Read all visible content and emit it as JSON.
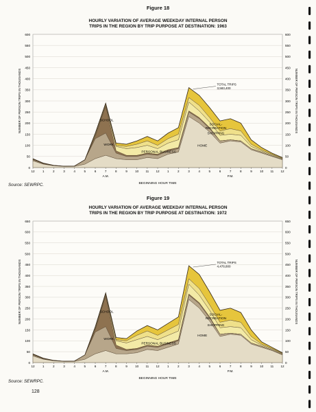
{
  "page_number": "128",
  "binding_color": "#111111",
  "colors": {
    "home": "#e4dcc6",
    "work": "#b7a68a",
    "school": "#8e7250",
    "personal_business": "#f3eaa6",
    "shopping": "#efe08a",
    "social_recreation": "#e6c53c",
    "outline": "#5a4a34"
  },
  "chart_data": [
    {
      "type": "area",
      "stacked": true,
      "figure_label": "Figure 18",
      "title": "HOURLY VARIATION OF AVERAGE WEEKDAY INTERNAL PERSON TRIPS IN THE REGION BY TRIP PURPOSE AT DESTINATION: 1963",
      "title_lines": [
        "HOURLY VARIATION OF AVERAGE WEEKDAY INTERNAL PERSON",
        "TRIPS IN THE REGION BY TRIP PURPOSE AT DESTINATION: 1963"
      ],
      "ylabel": "NUMBER OF PERSON TRIPS IN THOUSANDS",
      "xlabel": "BEGINNING HOUR TIME",
      "am_label": "A.M.",
      "pm_label": "P.M.",
      "x_tick_labels": [
        "12",
        "1",
        "2",
        "3",
        "4",
        "5",
        "6",
        "7",
        "8",
        "9",
        "10",
        "11",
        "12",
        "1",
        "2",
        "3",
        "4",
        "5",
        "6",
        "7",
        "8",
        "9",
        "10",
        "11",
        "12"
      ],
      "ylim": [
        0,
        600
      ],
      "yticks": [
        0,
        50,
        100,
        150,
        200,
        250,
        300,
        350,
        400,
        450,
        500,
        550,
        600
      ],
      "series": [
        {
          "name": "HOME",
          "values": [
            30,
            15,
            8,
            5,
            5,
            15,
            40,
            55,
            40,
            35,
            35,
            45,
            40,
            60,
            70,
            230,
            200,
            160,
            110,
            120,
            115,
            80,
            65,
            50,
            35
          ]
        },
        {
          "name": "WORK",
          "values": [
            5,
            2,
            1,
            1,
            2,
            20,
            90,
            100,
            25,
            15,
            15,
            15,
            15,
            15,
            15,
            20,
            20,
            15,
            10,
            5,
            5,
            5,
            5,
            3,
            2
          ]
        },
        {
          "name": "SCHOOL",
          "values": [
            0,
            0,
            0,
            0,
            0,
            0,
            10,
            120,
            10,
            5,
            5,
            5,
            5,
            5,
            5,
            5,
            5,
            5,
            0,
            0,
            0,
            0,
            0,
            0,
            0
          ]
        },
        {
          "name": "PERSONAL BUSINESS",
          "values": [
            2,
            1,
            0,
            0,
            0,
            0,
            5,
            5,
            20,
            30,
            35,
            35,
            25,
            30,
            35,
            40,
            30,
            25,
            25,
            25,
            25,
            10,
            5,
            4,
            3
          ]
        },
        {
          "name": "SHOPPING",
          "values": [
            1,
            1,
            0,
            0,
            0,
            0,
            5,
            5,
            5,
            10,
            15,
            20,
            15,
            20,
            25,
            20,
            25,
            20,
            20,
            25,
            20,
            10,
            5,
            3,
            2
          ]
        },
        {
          "name": "SOCIAL-RECREATION",
          "values": [
            2,
            1,
            1,
            0,
            0,
            0,
            5,
            5,
            10,
            10,
            15,
            20,
            20,
            25,
            30,
            45,
            45,
            45,
            45,
            45,
            35,
            20,
            10,
            5,
            3
          ]
        }
      ],
      "annotations": {
        "total_trips_label": "TOTAL TRIPS",
        "total_trips_value": "3,583,400"
      },
      "source": "Source: SEWRPC."
    },
    {
      "type": "area",
      "stacked": true,
      "figure_label": "Figure 19",
      "title": "HOURLY VARIATION OF AVERAGE WEEKDAY INTERNAL PERSON TRIPS IN THE REGION BY TRIP PURPOSE AT DESTINATION: 1972",
      "title_lines": [
        "HOURLY VARIATION OF AVERAGE WEEKDAY INTERNAL PERSON",
        "TRIPS IN THE REGION BY TRIP PURPOSE AT DESTINATION: 1972"
      ],
      "ylabel": "NUMBER OF PERSON TRIPS IN THOUSANDS",
      "xlabel": "BEGINNING HOUR TIME",
      "am_label": "A.M.",
      "pm_label": "P.M.",
      "x_tick_labels": [
        "12",
        "1",
        "2",
        "3",
        "4",
        "5",
        "6",
        "7",
        "8",
        "9",
        "10",
        "11",
        "12",
        "1",
        "2",
        "3",
        "4",
        "5",
        "6",
        "7",
        "8",
        "9",
        "10",
        "11",
        "12"
      ],
      "ylim": [
        0,
        650
      ],
      "yticks": [
        0,
        50,
        100,
        150,
        200,
        250,
        300,
        350,
        400,
        450,
        500,
        550,
        600,
        650
      ],
      "series": [
        {
          "name": "HOME",
          "values": [
            30,
            15,
            8,
            5,
            5,
            15,
            40,
            55,
            40,
            40,
            45,
            60,
            55,
            70,
            85,
            290,
            250,
            190,
            120,
            130,
            125,
            85,
            70,
            55,
            35
          ]
        },
        {
          "name": "WORK",
          "values": [
            5,
            2,
            1,
            1,
            2,
            20,
            100,
            110,
            25,
            15,
            15,
            15,
            15,
            15,
            15,
            20,
            20,
            15,
            10,
            5,
            5,
            5,
            5,
            3,
            2
          ]
        },
        {
          "name": "SCHOOL",
          "values": [
            0,
            0,
            0,
            0,
            0,
            0,
            10,
            140,
            15,
            5,
            5,
            5,
            5,
            5,
            5,
            5,
            5,
            5,
            0,
            0,
            0,
            0,
            0,
            0,
            0
          ]
        },
        {
          "name": "PERSONAL BUSINESS",
          "values": [
            2,
            1,
            0,
            0,
            0,
            0,
            5,
            5,
            20,
            30,
            40,
            40,
            30,
            35,
            40,
            45,
            35,
            30,
            30,
            30,
            30,
            15,
            5,
            4,
            3
          ]
        },
        {
          "name": "SHOPPING",
          "values": [
            1,
            1,
            0,
            0,
            0,
            0,
            5,
            5,
            5,
            10,
            20,
            25,
            20,
            25,
            30,
            25,
            30,
            25,
            25,
            30,
            25,
            15,
            5,
            3,
            2
          ]
        },
        {
          "name": "SOCIAL-RECREATION",
          "values": [
            2,
            1,
            1,
            0,
            0,
            0,
            5,
            5,
            10,
            10,
            20,
            25,
            25,
            30,
            35,
            60,
            65,
            60,
            55,
            55,
            45,
            30,
            10,
            5,
            3
          ]
        }
      ],
      "annotations": {
        "total_trips_label": "TOTAL TRIPS",
        "total_trips_value": "4,478,800"
      },
      "source": "Source: SEWRPC."
    }
  ]
}
